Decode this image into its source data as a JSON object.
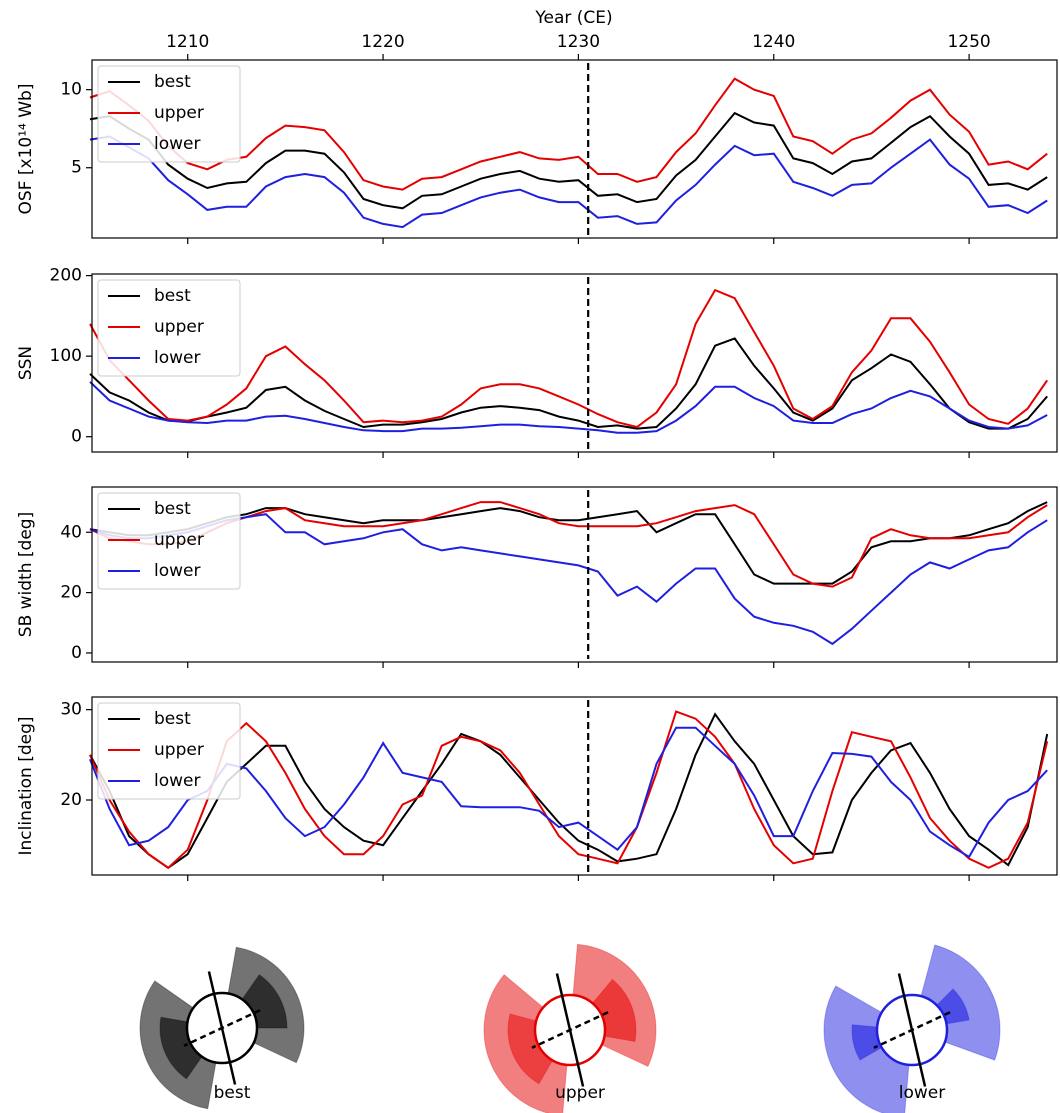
{
  "chart_data": [
    {
      "type": "line",
      "xlabel": "Year (CE)",
      "ylabel": "OSF [x10¹⁴ Wb]",
      "xlim": [
        1205.1,
        1254.5
      ],
      "xticks": [
        1210,
        1220,
        1230,
        1240,
        1250
      ],
      "ylim": [
        0.5,
        11.9
      ],
      "yticks": [
        5,
        10
      ],
      "vline": 1230.5,
      "legend": "upper left",
      "x": [
        1205,
        1206,
        1207,
        1208,
        1209,
        1210,
        1211,
        1212,
        1213,
        1214,
        1215,
        1216,
        1217,
        1218,
        1219,
        1220,
        1221,
        1222,
        1223,
        1224,
        1225,
        1226,
        1227,
        1228,
        1229,
        1230,
        1231,
        1232,
        1233,
        1234,
        1235,
        1236,
        1237,
        1238,
        1239,
        1240,
        1241,
        1242,
        1243,
        1244,
        1245,
        1246,
        1247,
        1248,
        1249,
        1250,
        1251,
        1252,
        1253,
        1254
      ],
      "series": [
        {
          "name": "best",
          "color": "#000000",
          "values": [
            8.1,
            8.3,
            7.5,
            6.8,
            5.2,
            4.3,
            3.7,
            4.0,
            4.1,
            5.3,
            6.1,
            6.1,
            5.9,
            4.7,
            3.0,
            2.6,
            2.4,
            3.2,
            3.3,
            3.8,
            4.3,
            4.6,
            4.8,
            4.3,
            4.1,
            4.2,
            3.2,
            3.3,
            2.8,
            3.0,
            4.5,
            5.5,
            7.0,
            8.5,
            7.9,
            7.7,
            5.6,
            5.3,
            4.6,
            5.4,
            5.6,
            6.6,
            7.6,
            8.3,
            7.0,
            5.9,
            3.9,
            4.0,
            3.6,
            4.4
          ]
        },
        {
          "name": "upper",
          "color": "#e50000",
          "values": [
            9.5,
            9.9,
            9.0,
            8.0,
            6.4,
            5.3,
            4.9,
            5.5,
            5.7,
            6.9,
            7.7,
            7.6,
            7.4,
            6.0,
            4.2,
            3.8,
            3.6,
            4.3,
            4.4,
            4.9,
            5.4,
            5.7,
            6.0,
            5.6,
            5.5,
            5.7,
            4.6,
            4.6,
            4.1,
            4.4,
            6.0,
            7.2,
            9.0,
            10.7,
            10.0,
            9.6,
            7.0,
            6.7,
            5.9,
            6.8,
            7.2,
            8.2,
            9.3,
            10.0,
            8.4,
            7.3,
            5.2,
            5.4,
            4.9,
            5.9
          ]
        },
        {
          "name": "lower",
          "color": "#1f1fe0",
          "values": [
            6.8,
            7.0,
            6.3,
            5.6,
            4.2,
            3.3,
            2.3,
            2.5,
            2.5,
            3.8,
            4.4,
            4.6,
            4.4,
            3.4,
            1.8,
            1.4,
            1.2,
            2.0,
            2.1,
            2.6,
            3.1,
            3.4,
            3.6,
            3.1,
            2.8,
            2.8,
            1.8,
            1.9,
            1.4,
            1.5,
            2.9,
            3.9,
            5.2,
            6.4,
            5.8,
            5.9,
            4.1,
            3.7,
            3.2,
            3.9,
            4.0,
            5.0,
            5.9,
            6.8,
            5.2,
            4.3,
            2.5,
            2.6,
            2.1,
            2.9
          ]
        }
      ]
    },
    {
      "type": "line",
      "ylabel": "SSN",
      "xlim": [
        1205.1,
        1254.5
      ],
      "ylim": [
        -19,
        202
      ],
      "yticks": [
        0,
        100,
        200
      ],
      "vline": 1230.5,
      "legend": "upper left",
      "x": [
        1205,
        1206,
        1207,
        1208,
        1209,
        1210,
        1211,
        1212,
        1213,
        1214,
        1215,
        1216,
        1217,
        1218,
        1219,
        1220,
        1221,
        1222,
        1223,
        1224,
        1225,
        1226,
        1227,
        1228,
        1229,
        1230,
        1231,
        1232,
        1233,
        1234,
        1235,
        1236,
        1237,
        1238,
        1239,
        1240,
        1241,
        1242,
        1243,
        1244,
        1245,
        1246,
        1247,
        1248,
        1249,
        1250,
        1251,
        1252,
        1253,
        1254
      ],
      "series": [
        {
          "name": "best",
          "color": "#000000",
          "values": [
            78,
            55,
            45,
            30,
            20,
            19,
            25,
            30,
            36,
            58,
            62,
            45,
            32,
            22,
            12,
            15,
            15,
            18,
            22,
            30,
            36,
            38,
            36,
            33,
            25,
            20,
            12,
            14,
            10,
            12,
            35,
            65,
            113,
            122,
            88,
            60,
            30,
            20,
            35,
            70,
            85,
            102,
            93,
            65,
            35,
            18,
            10,
            10,
            22,
            50
          ]
        },
        {
          "name": "upper",
          "color": "#e50000",
          "values": [
            140,
            95,
            70,
            45,
            22,
            20,
            25,
            40,
            60,
            100,
            112,
            90,
            70,
            45,
            18,
            20,
            18,
            20,
            25,
            40,
            60,
            65,
            65,
            60,
            50,
            40,
            28,
            18,
            12,
            30,
            65,
            140,
            182,
            172,
            130,
            88,
            35,
            22,
            38,
            80,
            107,
            147,
            147,
            118,
            80,
            40,
            22,
            16,
            35,
            70
          ]
        },
        {
          "name": "lower",
          "color": "#1f1fe0",
          "values": [
            68,
            45,
            35,
            25,
            20,
            18,
            17,
            20,
            20,
            25,
            26,
            22,
            17,
            12,
            8,
            7,
            7,
            10,
            10,
            11,
            13,
            15,
            15,
            13,
            12,
            10,
            8,
            5,
            5,
            7,
            20,
            38,
            62,
            62,
            48,
            38,
            20,
            17,
            17,
            28,
            35,
            48,
            57,
            50,
            35,
            20,
            12,
            10,
            14,
            27
          ]
        }
      ]
    },
    {
      "type": "line",
      "ylabel": "SB width [deg]",
      "xlim": [
        1205.1,
        1254.5
      ],
      "ylim": [
        -3,
        55
      ],
      "yticks": [
        0,
        20,
        40
      ],
      "vline": 1230.5,
      "legend": "upper left",
      "x": [
        1205,
        1206,
        1207,
        1208,
        1209,
        1210,
        1211,
        1212,
        1213,
        1214,
        1215,
        1216,
        1217,
        1218,
        1219,
        1220,
        1221,
        1222,
        1223,
        1224,
        1225,
        1226,
        1227,
        1228,
        1229,
        1230,
        1231,
        1232,
        1233,
        1234,
        1235,
        1236,
        1237,
        1238,
        1239,
        1240,
        1241,
        1242,
        1243,
        1244,
        1245,
        1246,
        1247,
        1248,
        1249,
        1250,
        1251,
        1252,
        1253,
        1254
      ],
      "series": [
        {
          "name": "best",
          "color": "#000000",
          "values": [
            41,
            40,
            39,
            39,
            40,
            41,
            43,
            45,
            46,
            48,
            48,
            46,
            45,
            44,
            43,
            44,
            44,
            44,
            45,
            46,
            47,
            48,
            47,
            45,
            44,
            44,
            45,
            46,
            47,
            40,
            43,
            46,
            46,
            36,
            26,
            23,
            23,
            23,
            23,
            27,
            35,
            37,
            37,
            38,
            38,
            39,
            41,
            43,
            47,
            50
          ]
        },
        {
          "name": "upper",
          "color": "#e50000",
          "values": [
            41,
            38,
            37,
            36,
            36,
            37,
            40,
            43,
            45,
            47,
            48,
            44,
            43,
            42,
            42,
            42,
            43,
            44,
            46,
            48,
            50,
            50,
            48,
            46,
            43,
            42,
            42,
            42,
            42,
            43,
            45,
            47,
            48,
            49,
            46,
            36,
            26,
            23,
            22,
            25,
            38,
            41,
            39,
            38,
            38,
            38,
            39,
            40,
            45,
            49
          ]
        },
        {
          "name": "lower",
          "color": "#1f1fe0",
          "values": [
            41,
            39,
            38,
            38,
            39,
            40,
            42,
            44,
            45,
            46,
            40,
            40,
            36,
            37,
            38,
            40,
            41,
            36,
            34,
            35,
            34,
            33,
            32,
            31,
            30,
            29,
            27,
            19,
            22,
            17,
            23,
            28,
            28,
            18,
            12,
            10,
            9,
            7,
            3,
            8,
            14,
            20,
            26,
            30,
            28,
            31,
            34,
            35,
            40,
            44
          ]
        }
      ]
    },
    {
      "type": "line",
      "ylabel": "Inclination [deg]",
      "xlim": [
        1205.1,
        1254.5
      ],
      "ylim": [
        11.7,
        31.4
      ],
      "yticks": [
        20,
        30
      ],
      "vline": 1230.5,
      "legend": "upper left",
      "x": [
        1205,
        1206,
        1207,
        1208,
        1209,
        1210,
        1211,
        1212,
        1213,
        1214,
        1215,
        1216,
        1217,
        1218,
        1219,
        1220,
        1221,
        1222,
        1223,
        1224,
        1225,
        1226,
        1227,
        1228,
        1229,
        1230,
        1231,
        1232,
        1233,
        1234,
        1235,
        1236,
        1237,
        1238,
        1239,
        1240,
        1241,
        1242,
        1243,
        1244,
        1245,
        1246,
        1247,
        1248,
        1249,
        1250,
        1251,
        1252,
        1253,
        1254
      ],
      "series": [
        {
          "name": "best",
          "color": "#000000",
          "values": [
            25,
            21,
            16,
            14,
            12.5,
            14,
            18,
            22,
            24,
            26,
            26,
            22,
            19,
            17,
            15.5,
            15,
            18,
            21,
            24,
            27.3,
            26.5,
            25,
            22.5,
            20,
            17.5,
            15.5,
            14.5,
            13.2,
            13.5,
            14,
            19,
            25,
            29.5,
            26.5,
            24,
            20,
            16,
            14,
            14.2,
            20,
            23,
            25.5,
            26.3,
            23,
            19,
            16,
            14.5,
            12.8,
            17,
            27.3
          ]
        },
        {
          "name": "upper",
          "color": "#e50000",
          "values": [
            25,
            20,
            16.5,
            14,
            12.5,
            14.5,
            20,
            26.5,
            28.5,
            26.5,
            23,
            19,
            16,
            14,
            14,
            16,
            19.5,
            20.5,
            26,
            27,
            26.5,
            25.5,
            23,
            19.5,
            16,
            14,
            13.5,
            13,
            17,
            23,
            29.8,
            29,
            27,
            24,
            19,
            15,
            13,
            13.5,
            21,
            27.5,
            27,
            26.5,
            22.5,
            18,
            15.5,
            13.5,
            12.5,
            13.5,
            17.5,
            26.5
          ]
        },
        {
          "name": "lower",
          "color": "#1f1fe0",
          "values": [
            24.5,
            19,
            15,
            15.5,
            17,
            20,
            21,
            24,
            23.5,
            21,
            18,
            16,
            17,
            19.5,
            22.5,
            26.3,
            23,
            22.5,
            22,
            19.3,
            19.2,
            19.2,
            19.2,
            18.8,
            17,
            17.5,
            16,
            14.5,
            17,
            24,
            28,
            28,
            26,
            24,
            20.5,
            16,
            16,
            21,
            25.2,
            25.1,
            24.8,
            22,
            20,
            16.5,
            15,
            13.7,
            17.5,
            20,
            21,
            23.3
          ]
        }
      ]
    }
  ],
  "diagrams": [
    {
      "label": "best",
      "color": "#000000"
    },
    {
      "label": "upper",
      "color": "#e50000"
    },
    {
      "label": "lower",
      "color": "#1f1fe0"
    }
  ]
}
